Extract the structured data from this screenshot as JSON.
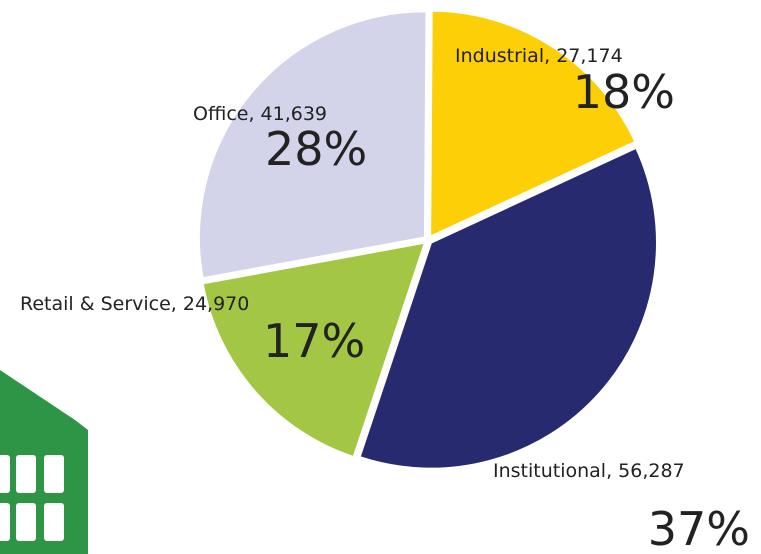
{
  "chart_data": {
    "type": "pie",
    "categories": [
      "Industrial",
      "Institutional",
      "Retail & Service",
      "Office"
    ],
    "labels": [
      "Industrial, 27,174",
      "Institutional, 56,287",
      "Retail & Service, 24,970",
      "Office, 41,639"
    ],
    "counts": [
      27174,
      56287,
      24970,
      41639
    ],
    "values": [
      18,
      37,
      17,
      28
    ],
    "value_labels": [
      "18%",
      "37%",
      "17%",
      "28%"
    ],
    "colors": [
      "#fccf06",
      "#272a6f",
      "#a3c644",
      "#d3d3ea"
    ]
  }
}
